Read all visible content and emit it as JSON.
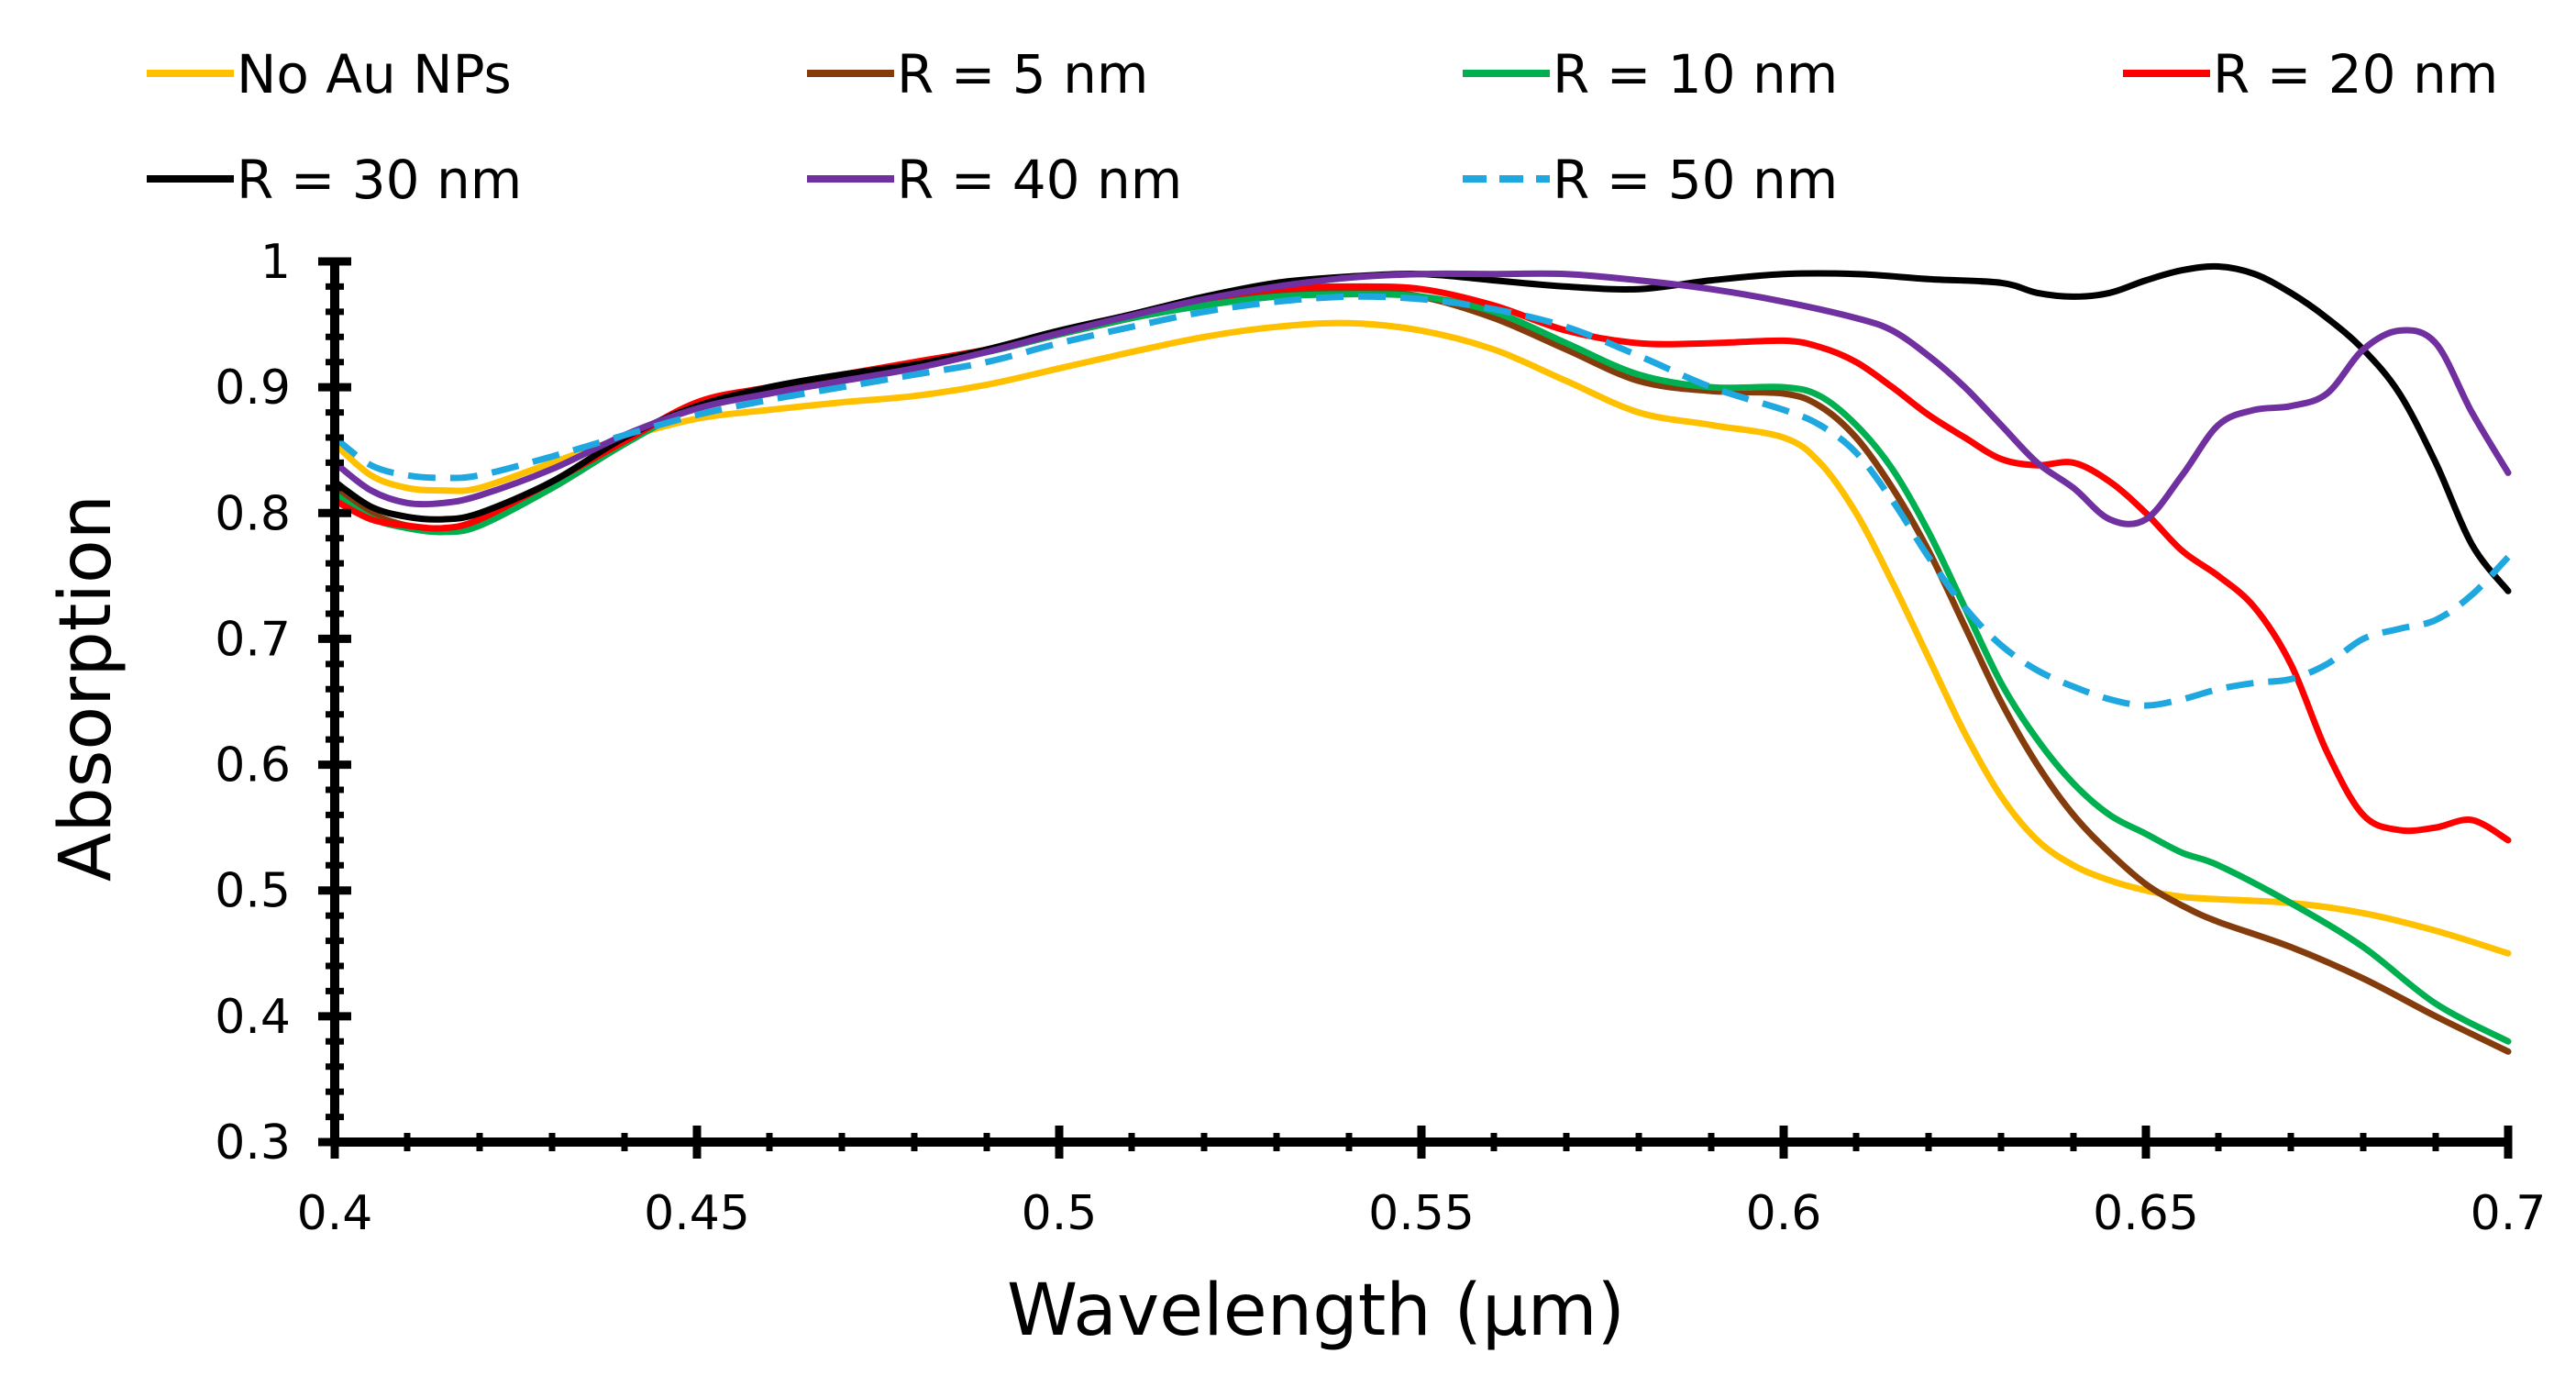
{
  "chart_data": {
    "type": "line",
    "title": "",
    "xlabel": "Wavelength (µm)",
    "ylabel": "Absorption",
    "xlim": [
      0.4,
      0.7
    ],
    "ylim": [
      0.3,
      1.0
    ],
    "grid": false,
    "legend_position": "top",
    "x_ticks": [
      "0.4",
      "0.45",
      "0.5",
      "0.55",
      "0.6",
      "0.65",
      "0.7"
    ],
    "y_ticks": [
      "0.3",
      "0.4",
      "0.5",
      "0.6",
      "0.7",
      "0.8",
      "0.9",
      "1"
    ],
    "series": [
      {
        "name": "No Au NPs",
        "color": "#FFC000",
        "dash": "solid",
        "points": [
          [
            0.4,
            0.855
          ],
          [
            0.405,
            0.83
          ],
          [
            0.41,
            0.82
          ],
          [
            0.415,
            0.818
          ],
          [
            0.42,
            0.82
          ],
          [
            0.43,
            0.84
          ],
          [
            0.44,
            0.86
          ],
          [
            0.45,
            0.875
          ],
          [
            0.46,
            0.882
          ],
          [
            0.47,
            0.888
          ],
          [
            0.48,
            0.893
          ],
          [
            0.49,
            0.902
          ],
          [
            0.5,
            0.915
          ],
          [
            0.51,
            0.928
          ],
          [
            0.52,
            0.94
          ],
          [
            0.53,
            0.948
          ],
          [
            0.54,
            0.951
          ],
          [
            0.55,
            0.945
          ],
          [
            0.56,
            0.93
          ],
          [
            0.57,
            0.905
          ],
          [
            0.58,
            0.88
          ],
          [
            0.59,
            0.87
          ],
          [
            0.6,
            0.86
          ],
          [
            0.605,
            0.84
          ],
          [
            0.61,
            0.8
          ],
          [
            0.615,
            0.745
          ],
          [
            0.62,
            0.685
          ],
          [
            0.625,
            0.625
          ],
          [
            0.63,
            0.575
          ],
          [
            0.635,
            0.54
          ],
          [
            0.64,
            0.52
          ],
          [
            0.645,
            0.508
          ],
          [
            0.65,
            0.5
          ],
          [
            0.655,
            0.495
          ],
          [
            0.66,
            0.493
          ],
          [
            0.67,
            0.49
          ],
          [
            0.68,
            0.482
          ],
          [
            0.69,
            0.468
          ],
          [
            0.7,
            0.45
          ]
        ]
      },
      {
        "name": "R = 5 nm",
        "color": "#843C0C",
        "dash": "solid",
        "points": [
          [
            0.4,
            0.82
          ],
          [
            0.405,
            0.8
          ],
          [
            0.41,
            0.79
          ],
          [
            0.415,
            0.787
          ],
          [
            0.42,
            0.792
          ],
          [
            0.43,
            0.82
          ],
          [
            0.44,
            0.855
          ],
          [
            0.45,
            0.885
          ],
          [
            0.46,
            0.9
          ],
          [
            0.47,
            0.91
          ],
          [
            0.48,
            0.918
          ],
          [
            0.49,
            0.928
          ],
          [
            0.5,
            0.942
          ],
          [
            0.51,
            0.955
          ],
          [
            0.52,
            0.968
          ],
          [
            0.53,
            0.976
          ],
          [
            0.54,
            0.978
          ],
          [
            0.55,
            0.972
          ],
          [
            0.56,
            0.955
          ],
          [
            0.57,
            0.93
          ],
          [
            0.58,
            0.905
          ],
          [
            0.59,
            0.897
          ],
          [
            0.6,
            0.895
          ],
          [
            0.605,
            0.885
          ],
          [
            0.61,
            0.86
          ],
          [
            0.615,
            0.82
          ],
          [
            0.62,
            0.77
          ],
          [
            0.625,
            0.71
          ],
          [
            0.63,
            0.65
          ],
          [
            0.635,
            0.6
          ],
          [
            0.64,
            0.56
          ],
          [
            0.645,
            0.53
          ],
          [
            0.65,
            0.505
          ],
          [
            0.655,
            0.488
          ],
          [
            0.66,
            0.475
          ],
          [
            0.67,
            0.455
          ],
          [
            0.68,
            0.43
          ],
          [
            0.69,
            0.4
          ],
          [
            0.7,
            0.372
          ]
        ]
      },
      {
        "name": "R = 10 nm",
        "color": "#00B050",
        "dash": "solid",
        "points": [
          [
            0.4,
            0.815
          ],
          [
            0.405,
            0.796
          ],
          [
            0.41,
            0.788
          ],
          [
            0.415,
            0.785
          ],
          [
            0.42,
            0.79
          ],
          [
            0.43,
            0.82
          ],
          [
            0.44,
            0.855
          ],
          [
            0.45,
            0.885
          ],
          [
            0.46,
            0.9
          ],
          [
            0.47,
            0.91
          ],
          [
            0.48,
            0.918
          ],
          [
            0.49,
            0.928
          ],
          [
            0.5,
            0.942
          ],
          [
            0.51,
            0.955
          ],
          [
            0.52,
            0.965
          ],
          [
            0.53,
            0.972
          ],
          [
            0.54,
            0.974
          ],
          [
            0.55,
            0.972
          ],
          [
            0.56,
            0.96
          ],
          [
            0.57,
            0.935
          ],
          [
            0.58,
            0.91
          ],
          [
            0.59,
            0.9
          ],
          [
            0.6,
            0.9
          ],
          [
            0.605,
            0.893
          ],
          [
            0.61,
            0.87
          ],
          [
            0.615,
            0.835
          ],
          [
            0.62,
            0.785
          ],
          [
            0.625,
            0.725
          ],
          [
            0.63,
            0.665
          ],
          [
            0.635,
            0.62
          ],
          [
            0.64,
            0.585
          ],
          [
            0.645,
            0.56
          ],
          [
            0.65,
            0.545
          ],
          [
            0.655,
            0.53
          ],
          [
            0.66,
            0.52
          ],
          [
            0.67,
            0.49
          ],
          [
            0.68,
            0.455
          ],
          [
            0.69,
            0.41
          ],
          [
            0.7,
            0.38
          ]
        ]
      },
      {
        "name": "R = 20 nm",
        "color": "#FF0000",
        "dash": "solid",
        "points": [
          [
            0.4,
            0.81
          ],
          [
            0.405,
            0.795
          ],
          [
            0.41,
            0.79
          ],
          [
            0.415,
            0.788
          ],
          [
            0.42,
            0.795
          ],
          [
            0.43,
            0.825
          ],
          [
            0.44,
            0.857
          ],
          [
            0.45,
            0.888
          ],
          [
            0.46,
            0.9
          ],
          [
            0.47,
            0.91
          ],
          [
            0.48,
            0.92
          ],
          [
            0.49,
            0.93
          ],
          [
            0.5,
            0.943
          ],
          [
            0.51,
            0.958
          ],
          [
            0.52,
            0.97
          ],
          [
            0.53,
            0.978
          ],
          [
            0.54,
            0.98
          ],
          [
            0.55,
            0.978
          ],
          [
            0.56,
            0.965
          ],
          [
            0.57,
            0.945
          ],
          [
            0.58,
            0.935
          ],
          [
            0.59,
            0.935
          ],
          [
            0.6,
            0.937
          ],
          [
            0.605,
            0.932
          ],
          [
            0.61,
            0.92
          ],
          [
            0.615,
            0.9
          ],
          [
            0.62,
            0.878
          ],
          [
            0.625,
            0.86
          ],
          [
            0.63,
            0.843
          ],
          [
            0.635,
            0.838
          ],
          [
            0.64,
            0.84
          ],
          [
            0.645,
            0.825
          ],
          [
            0.65,
            0.8
          ],
          [
            0.655,
            0.77
          ],
          [
            0.66,
            0.75
          ],
          [
            0.665,
            0.725
          ],
          [
            0.67,
            0.68
          ],
          [
            0.675,
            0.61
          ],
          [
            0.68,
            0.56
          ],
          [
            0.685,
            0.548
          ],
          [
            0.69,
            0.55
          ],
          [
            0.695,
            0.556
          ],
          [
            0.7,
            0.54
          ]
        ]
      },
      {
        "name": "R = 30 nm",
        "color": "#000000",
        "dash": "solid",
        "points": [
          [
            0.4,
            0.825
          ],
          [
            0.405,
            0.805
          ],
          [
            0.41,
            0.797
          ],
          [
            0.415,
            0.795
          ],
          [
            0.42,
            0.8
          ],
          [
            0.43,
            0.825
          ],
          [
            0.44,
            0.86
          ],
          [
            0.45,
            0.885
          ],
          [
            0.46,
            0.9
          ],
          [
            0.47,
            0.91
          ],
          [
            0.48,
            0.918
          ],
          [
            0.49,
            0.93
          ],
          [
            0.5,
            0.945
          ],
          [
            0.51,
            0.958
          ],
          [
            0.52,
            0.972
          ],
          [
            0.53,
            0.983
          ],
          [
            0.54,
            0.988
          ],
          [
            0.55,
            0.99
          ],
          [
            0.56,
            0.985
          ],
          [
            0.57,
            0.98
          ],
          [
            0.58,
            0.978
          ],
          [
            0.59,
            0.985
          ],
          [
            0.6,
            0.99
          ],
          [
            0.61,
            0.99
          ],
          [
            0.62,
            0.986
          ],
          [
            0.63,
            0.983
          ],
          [
            0.635,
            0.975
          ],
          [
            0.64,
            0.972
          ],
          [
            0.645,
            0.975
          ],
          [
            0.65,
            0.985
          ],
          [
            0.655,
            0.993
          ],
          [
            0.66,
            0.996
          ],
          [
            0.665,
            0.99
          ],
          [
            0.67,
            0.975
          ],
          [
            0.675,
            0.955
          ],
          [
            0.68,
            0.93
          ],
          [
            0.685,
            0.895
          ],
          [
            0.69,
            0.84
          ],
          [
            0.695,
            0.775
          ],
          [
            0.7,
            0.738
          ]
        ]
      },
      {
        "name": "R = 40 nm",
        "color": "#7030A0",
        "dash": "solid",
        "points": [
          [
            0.4,
            0.84
          ],
          [
            0.405,
            0.818
          ],
          [
            0.41,
            0.808
          ],
          [
            0.415,
            0.808
          ],
          [
            0.42,
            0.814
          ],
          [
            0.43,
            0.835
          ],
          [
            0.44,
            0.862
          ],
          [
            0.45,
            0.883
          ],
          [
            0.46,
            0.895
          ],
          [
            0.47,
            0.905
          ],
          [
            0.48,
            0.915
          ],
          [
            0.49,
            0.928
          ],
          [
            0.5,
            0.943
          ],
          [
            0.51,
            0.957
          ],
          [
            0.52,
            0.97
          ],
          [
            0.53,
            0.98
          ],
          [
            0.54,
            0.987
          ],
          [
            0.55,
            0.99
          ],
          [
            0.56,
            0.99
          ],
          [
            0.57,
            0.99
          ],
          [
            0.58,
            0.985
          ],
          [
            0.59,
            0.978
          ],
          [
            0.6,
            0.968
          ],
          [
            0.61,
            0.955
          ],
          [
            0.615,
            0.945
          ],
          [
            0.62,
            0.925
          ],
          [
            0.625,
            0.9
          ],
          [
            0.63,
            0.87
          ],
          [
            0.635,
            0.84
          ],
          [
            0.64,
            0.82
          ],
          [
            0.645,
            0.795
          ],
          [
            0.65,
            0.795
          ],
          [
            0.655,
            0.83
          ],
          [
            0.66,
            0.87
          ],
          [
            0.665,
            0.882
          ],
          [
            0.67,
            0.885
          ],
          [
            0.675,
            0.895
          ],
          [
            0.68,
            0.93
          ],
          [
            0.685,
            0.945
          ],
          [
            0.69,
            0.935
          ],
          [
            0.695,
            0.88
          ],
          [
            0.7,
            0.832
          ]
        ]
      },
      {
        "name": "R = 50 nm",
        "color": "#1FA8E0",
        "dash": "dashed",
        "points": [
          [
            0.4,
            0.86
          ],
          [
            0.405,
            0.838
          ],
          [
            0.41,
            0.83
          ],
          [
            0.415,
            0.828
          ],
          [
            0.42,
            0.83
          ],
          [
            0.43,
            0.845
          ],
          [
            0.44,
            0.862
          ],
          [
            0.45,
            0.878
          ],
          [
            0.46,
            0.89
          ],
          [
            0.47,
            0.9
          ],
          [
            0.48,
            0.91
          ],
          [
            0.49,
            0.92
          ],
          [
            0.5,
            0.935
          ],
          [
            0.51,
            0.948
          ],
          [
            0.52,
            0.96
          ],
          [
            0.53,
            0.968
          ],
          [
            0.54,
            0.972
          ],
          [
            0.55,
            0.97
          ],
          [
            0.56,
            0.962
          ],
          [
            0.57,
            0.948
          ],
          [
            0.58,
            0.925
          ],
          [
            0.59,
            0.9
          ],
          [
            0.6,
            0.882
          ],
          [
            0.605,
            0.87
          ],
          [
            0.61,
            0.848
          ],
          [
            0.615,
            0.81
          ],
          [
            0.62,
            0.765
          ],
          [
            0.625,
            0.725
          ],
          [
            0.63,
            0.695
          ],
          [
            0.635,
            0.675
          ],
          [
            0.64,
            0.662
          ],
          [
            0.645,
            0.652
          ],
          [
            0.65,
            0.647
          ],
          [
            0.655,
            0.652
          ],
          [
            0.66,
            0.66
          ],
          [
            0.665,
            0.665
          ],
          [
            0.67,
            0.668
          ],
          [
            0.675,
            0.68
          ],
          [
            0.68,
            0.7
          ],
          [
            0.685,
            0.708
          ],
          [
            0.69,
            0.715
          ],
          [
            0.695,
            0.735
          ],
          [
            0.7,
            0.765
          ]
        ]
      }
    ]
  }
}
